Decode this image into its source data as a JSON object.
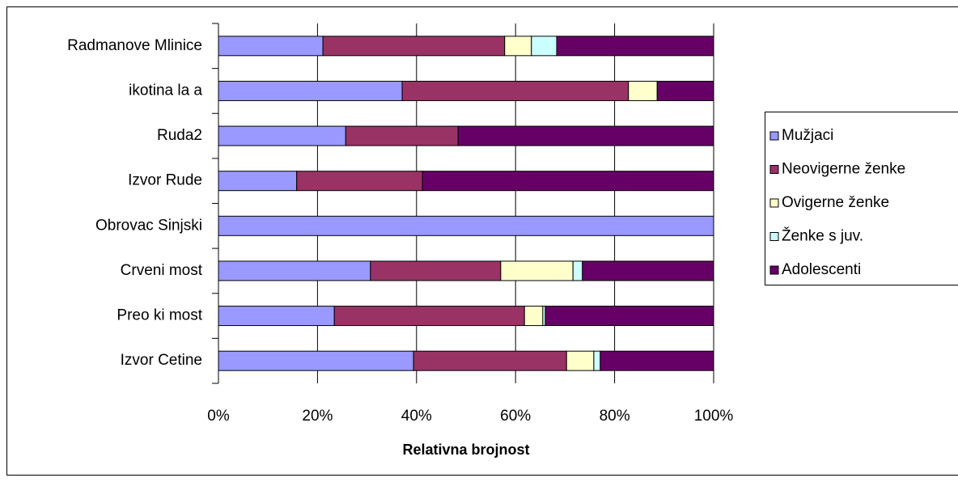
{
  "chart_data": {
    "type": "stacked-bar-horizontal",
    "x_label": "Relativna brojnost",
    "categories": [
      "Radmanove Mlinice",
      "ikotina la  a",
      "Ruda2",
      "Izvor Rude",
      "Obrovac Sinjski",
      "Crveni most",
      "Preo  ki most",
      "Izvor Cetine"
    ],
    "series": [
      {
        "name": "Mužjaci",
        "color": "#9999ff",
        "values": [
          21.1,
          37.1,
          25.7,
          15.8,
          100,
          30.7,
          23.4,
          39.4
        ]
      },
      {
        "name": "Neovigerne ženke",
        "color": "#993366",
        "values": [
          36.7,
          45.7,
          22.7,
          25.4,
          0,
          26.3,
          38.4,
          30.9
        ]
      },
      {
        "name": "Ovigerne ženke",
        "color": "#ffffcc",
        "values": [
          5.4,
          5.8,
          0,
          0,
          0,
          14.6,
          3.7,
          5.5
        ]
      },
      {
        "name": "Ženke s juv.",
        "color": "#ccffff",
        "values": [
          5.1,
          0,
          0,
          0,
          0,
          1.9,
          0.5,
          1.3
        ]
      },
      {
        "name": "Adolescenti",
        "color": "#660066",
        "values": [
          31.7,
          11.4,
          51.6,
          58.8,
          0,
          26.5,
          34.0,
          22.9
        ]
      }
    ],
    "xlim": [
      0,
      100
    ],
    "xticks": [
      {
        "value": 0,
        "label": "0%"
      },
      {
        "value": 20,
        "label": "20%"
      },
      {
        "value": 40,
        "label": "40%"
      },
      {
        "value": 60,
        "label": "60%"
      },
      {
        "value": 80,
        "label": "80%"
      },
      {
        "value": 100,
        "label": "100%"
      }
    ],
    "grid": true,
    "legend": "right"
  }
}
